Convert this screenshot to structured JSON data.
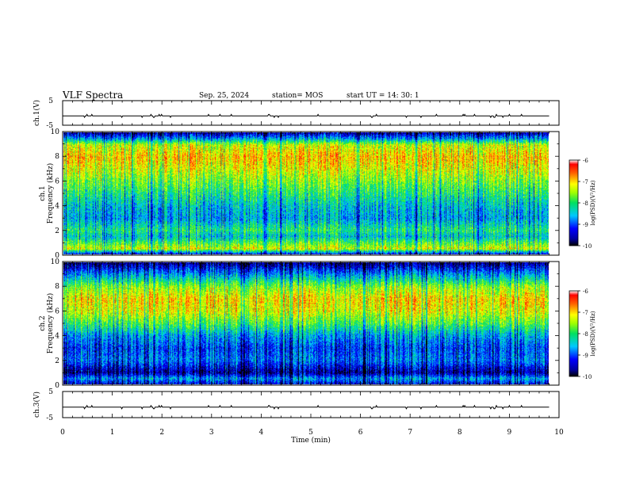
{
  "header": {
    "title": "VLF Spectra",
    "date": "Sep. 25, 2024",
    "station": "station= MOS",
    "start": "start  UT =   14: 30: 1"
  },
  "chart_data": [
    {
      "type": "line",
      "panel": "ch1-waveform",
      "ylabel": "ch.1(V)",
      "yticks": [
        "5",
        "-5"
      ],
      "ylim": [
        -5,
        5
      ],
      "xlim": [
        0,
        10
      ],
      "series": [
        {
          "values_approx_constant": -1.2
        }
      ]
    },
    {
      "type": "heatmap",
      "panel": "ch1-spectrogram",
      "ylabel": "ch.1 Frequency (kHz)",
      "ylabel_lines": [
        "ch.1",
        "Frequency (kHz)"
      ],
      "yticks": [
        "0",
        "2",
        "4",
        "6",
        "8",
        "10"
      ],
      "ylim": [
        0,
        10
      ],
      "xlim": [
        0,
        10
      ],
      "colorbar": {
        "label": "log(PSD)(V²/Hz)",
        "ticks": [
          "-6",
          "-7",
          "-8",
          "-9",
          "-10"
        ],
        "range": [
          -10,
          -6
        ]
      },
      "intensity_profile_by_freq_khz": [
        [
          0,
          -9.5
        ],
        [
          0.5,
          -7.2
        ],
        [
          1.5,
          -8.4
        ],
        [
          2,
          -8.0
        ],
        [
          3,
          -8.6
        ],
        [
          4,
          -8.4
        ],
        [
          5,
          -8.0
        ],
        [
          6,
          -7.6
        ],
        [
          7,
          -7.2
        ],
        [
          8,
          -6.9
        ],
        [
          9,
          -7.3
        ],
        [
          9.5,
          -8.6
        ],
        [
          10,
          -9.6
        ]
      ]
    },
    {
      "type": "heatmap",
      "panel": "ch2-spectrogram",
      "ylabel": "ch.2 Frequency (kHz)",
      "ylabel_lines": [
        "ch.2",
        "Frequency (kHz)"
      ],
      "yticks": [
        "0",
        "2",
        "4",
        "6",
        "8",
        "10"
      ],
      "ylim": [
        0,
        10
      ],
      "xlim": [
        0,
        10
      ],
      "colorbar": {
        "label": "log(PSD)(V²/Hz)",
        "ticks": [
          "-6",
          "-7",
          "-8",
          "-9",
          "-10"
        ],
        "range": [
          -10,
          -6
        ]
      },
      "intensity_profile_by_freq_khz": [
        [
          0,
          -9.4
        ],
        [
          0.5,
          -8.6
        ],
        [
          1,
          -9.6
        ],
        [
          1.5,
          -9.2
        ],
        [
          2,
          -8.8
        ],
        [
          3,
          -9.0
        ],
        [
          4,
          -8.6
        ],
        [
          5,
          -7.8
        ],
        [
          6,
          -7.2
        ],
        [
          7,
          -7.0
        ],
        [
          8,
          -7.5
        ],
        [
          9,
          -8.6
        ],
        [
          10,
          -9.7
        ]
      ]
    },
    {
      "type": "line",
      "panel": "ch3-waveform",
      "ylabel": "ch.3(V)",
      "yticks": [
        "5",
        "-5"
      ],
      "ylim": [
        -5,
        5
      ],
      "xlim": [
        0,
        10
      ],
      "series": [
        {
          "values_approx_constant": -1.0
        }
      ]
    }
  ],
  "xaxis": {
    "label": "Time  (min)",
    "ticks": [
      "0",
      "1",
      "2",
      "3",
      "4",
      "5",
      "6",
      "7",
      "8",
      "9",
      "10"
    ]
  }
}
